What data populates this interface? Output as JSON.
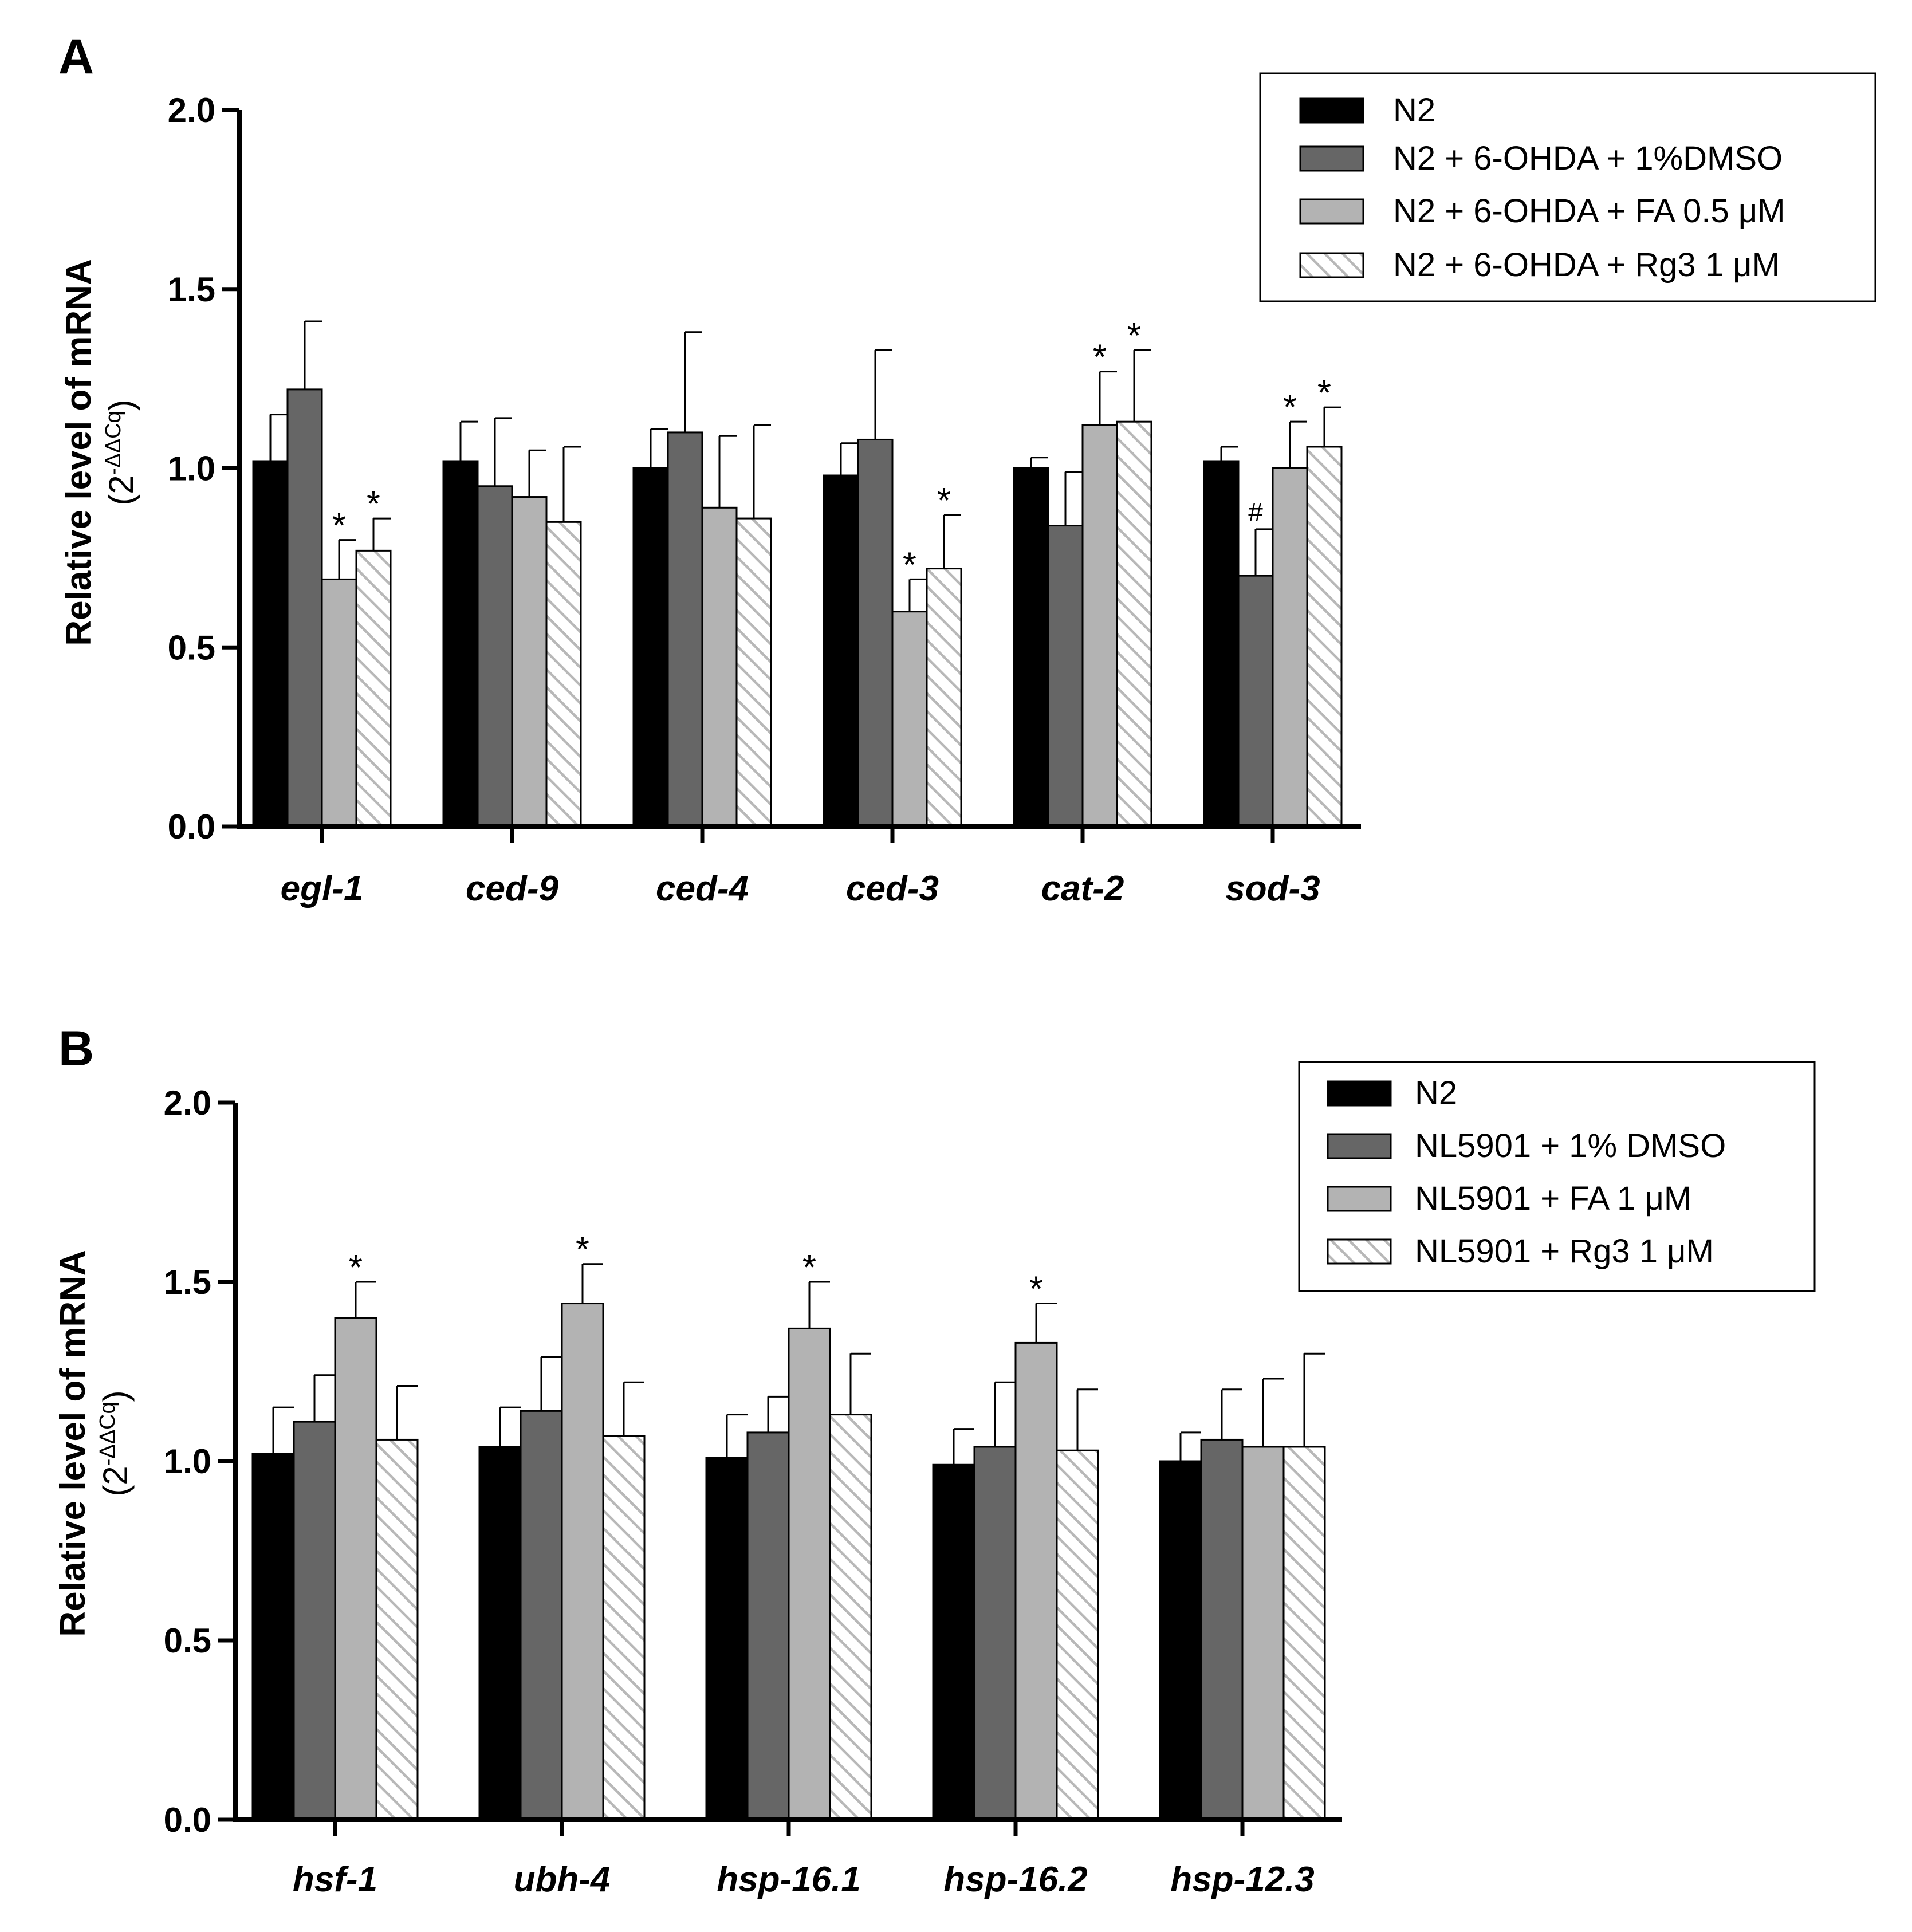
{
  "chart_data": [
    {
      "panel": "A",
      "type": "bar",
      "ylabel": "Relative level of mRNA",
      "ylabel_sub": "(2",
      "ylabel_sup": "-ΔΔCq",
      "ylabel_close": ")",
      "ylim": [
        0,
        2.0
      ],
      "yticks": [
        0.0,
        0.5,
        1.0,
        1.5,
        2.0
      ],
      "ytick_labels": [
        "0.0",
        "0.5",
        "1.0",
        "1.5",
        "2.0"
      ],
      "categories": [
        "egl-1",
        "ced-9",
        "ced-4",
        "ced-3",
        "cat-2",
        "sod-3"
      ],
      "series": [
        {
          "name": "N2",
          "style": "black",
          "values": [
            1.02,
            1.02,
            1.0,
            0.98,
            1.0,
            1.02
          ],
          "errors": [
            0.13,
            0.11,
            0.11,
            0.09,
            0.03,
            0.04
          ],
          "marks": [
            "",
            "",
            "",
            "",
            "",
            ""
          ]
        },
        {
          "name": "N2 + 6-OHDA + 1%DMSO",
          "style": "dark",
          "values": [
            1.22,
            0.95,
            1.1,
            1.08,
            0.84,
            0.7
          ],
          "errors": [
            0.19,
            0.19,
            0.28,
            0.25,
            0.15,
            0.13
          ],
          "marks": [
            "",
            "",
            "",
            "",
            "",
            "#"
          ]
        },
        {
          "name": "N2 + 6-OHDA + FA 0.5 μM",
          "style": "light",
          "values": [
            0.69,
            0.92,
            0.89,
            0.6,
            1.12,
            1.0
          ],
          "errors": [
            0.11,
            0.13,
            0.2,
            0.09,
            0.15,
            0.13
          ],
          "marks": [
            "*",
            "",
            "",
            "*",
            "*",
            "*"
          ]
        },
        {
          "name": "N2 + 6-OHDA + Rg3 1 μM",
          "style": "hatched",
          "values": [
            0.77,
            0.85,
            0.86,
            0.72,
            1.13,
            1.06
          ],
          "errors": [
            0.09,
            0.21,
            0.26,
            0.15,
            0.2,
            0.11
          ],
          "marks": [
            "*",
            "",
            "",
            "*",
            "*",
            "*"
          ]
        }
      ]
    },
    {
      "panel": "B",
      "type": "bar",
      "ylabel": "Relative level of mRNA",
      "ylabel_sub": "(2",
      "ylabel_sup": "-ΔΔCq",
      "ylabel_close": ")",
      "ylim": [
        0,
        2.0
      ],
      "yticks": [
        0.0,
        0.5,
        1.0,
        1.5,
        2.0
      ],
      "ytick_labels": [
        "0.0",
        "0.5",
        "1.0",
        "1.5",
        "2.0"
      ],
      "categories": [
        "hsf-1",
        "ubh-4",
        "hsp-16.1",
        "hsp-16.2",
        "hsp-12.3"
      ],
      "series": [
        {
          "name": "N2",
          "style": "black",
          "values": [
            1.02,
            1.04,
            1.01,
            0.99,
            1.0
          ],
          "errors": [
            0.13,
            0.11,
            0.12,
            0.1,
            0.08
          ],
          "marks": [
            "",
            "",
            "",
            "",
            ""
          ]
        },
        {
          "name": "NL5901 + 1% DMSO",
          "style": "dark",
          "values": [
            1.11,
            1.14,
            1.08,
            1.04,
            1.06
          ],
          "errors": [
            0.13,
            0.15,
            0.1,
            0.18,
            0.14
          ],
          "marks": [
            "",
            "",
            "",
            "",
            ""
          ]
        },
        {
          "name": "NL5901 + FA 1 μM",
          "style": "light",
          "values": [
            1.4,
            1.44,
            1.37,
            1.33,
            1.04
          ],
          "errors": [
            0.1,
            0.11,
            0.13,
            0.11,
            0.19
          ],
          "marks": [
            "*",
            "*",
            "*",
            "*",
            ""
          ]
        },
        {
          "name": "NL5901 + Rg3 1 μM",
          "style": "hatched",
          "values": [
            1.06,
            1.07,
            1.13,
            1.03,
            1.04
          ],
          "errors": [
            0.15,
            0.15,
            0.17,
            0.17,
            0.26
          ],
          "marks": [
            "",
            "",
            "",
            "",
            ""
          ]
        }
      ]
    }
  ],
  "colors": {
    "black": "#000000",
    "dark": "#666666",
    "light": "#b3b3b3",
    "hatch_line": "#b8b8b8",
    "axis": "#000000"
  }
}
